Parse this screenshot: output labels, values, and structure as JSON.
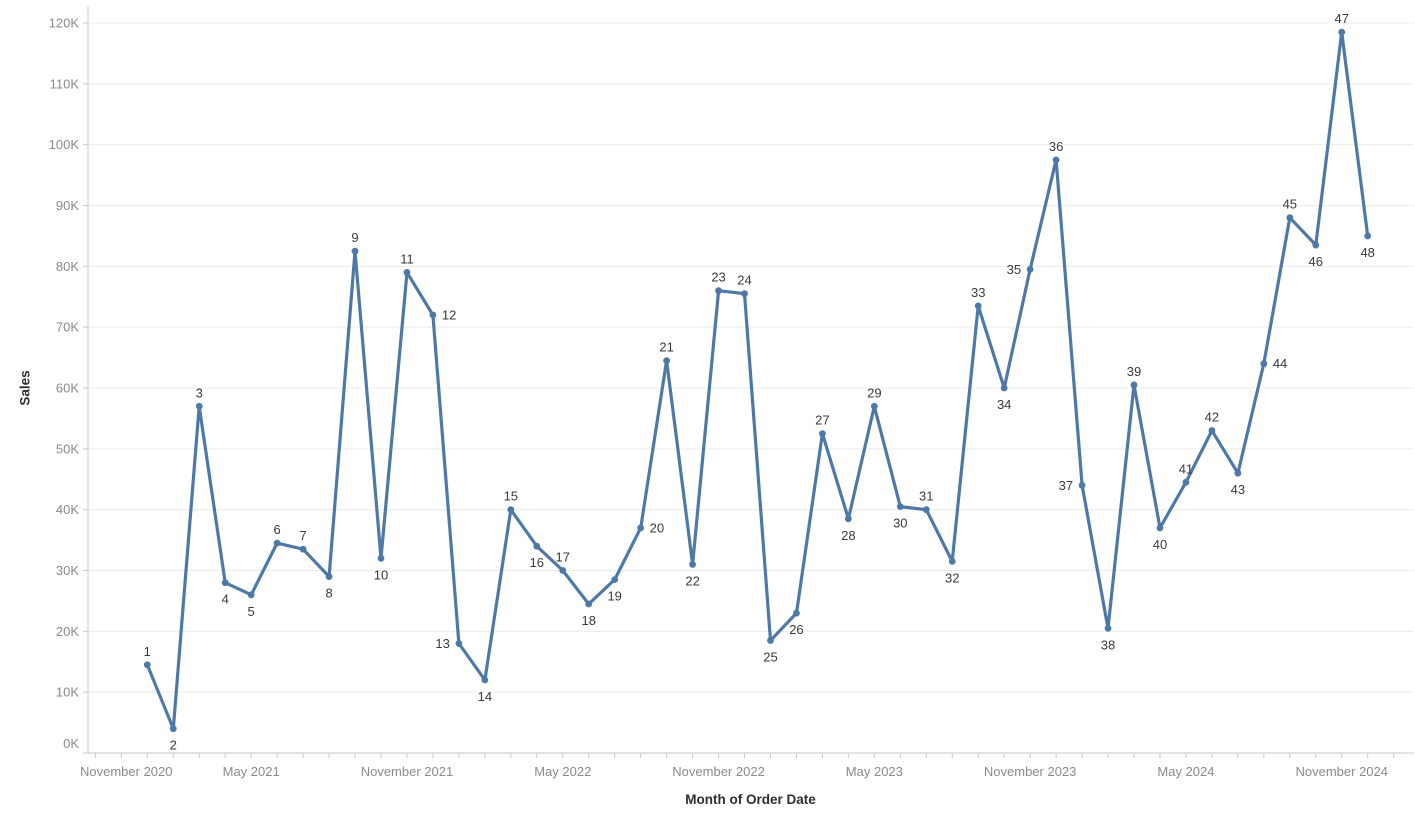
{
  "colors": {
    "line": "#4e79a7",
    "marker": "#4e79a7",
    "gridline": "#ececec",
    "axis_line": "#c9c9c9",
    "tick": "#c9c9c9",
    "tick_label": "#8a8a8a",
    "axis_title": "#2e2e2e",
    "data_label": "#3a3a3a",
    "background": "#ffffff"
  },
  "chart_data": {
    "type": "line",
    "title": "",
    "xlabel": "Month of Order Date",
    "ylabel": "Sales",
    "ylim": [
      0,
      120000
    ],
    "y_unit": "K",
    "grid": "horizontal",
    "legend": "none",
    "y_tick_labels": [
      "0K",
      "10K",
      "20K",
      "30K",
      "40K",
      "50K",
      "60K",
      "70K",
      "80K",
      "90K",
      "100K",
      "110K",
      "120K"
    ],
    "x_axis_tick_labels": [
      "November 2020",
      "May 2021",
      "November 2021",
      "May 2022",
      "November 2022",
      "May 2023",
      "November 2023",
      "May 2024",
      "November 2024"
    ],
    "series": [
      {
        "name": "Sales",
        "color": "#4e79a7",
        "points": [
          {
            "n": 1,
            "month": "January 2021",
            "sales_k": 14.5,
            "label_side": "above"
          },
          {
            "n": 2,
            "month": "February 2021",
            "sales_k": 4,
            "label_side": "below"
          },
          {
            "n": 3,
            "month": "March 2021",
            "sales_k": 57,
            "label_side": "above"
          },
          {
            "n": 4,
            "month": "April 2021",
            "sales_k": 28,
            "label_side": "below"
          },
          {
            "n": 5,
            "month": "May 2021",
            "sales_k": 26,
            "label_side": "below"
          },
          {
            "n": 6,
            "month": "June 2021",
            "sales_k": 34.5,
            "label_side": "above"
          },
          {
            "n": 7,
            "month": "July 2021",
            "sales_k": 33.5,
            "label_side": "above"
          },
          {
            "n": 8,
            "month": "August 2021",
            "sales_k": 29,
            "label_side": "below"
          },
          {
            "n": 9,
            "month": "September 2021",
            "sales_k": 82.5,
            "label_side": "above"
          },
          {
            "n": 10,
            "month": "October 2021",
            "sales_k": 32,
            "label_side": "below"
          },
          {
            "n": 11,
            "month": "November 2021",
            "sales_k": 79,
            "label_side": "above"
          },
          {
            "n": 12,
            "month": "December 2021",
            "sales_k": 72,
            "label_side": "right"
          },
          {
            "n": 13,
            "month": "January 2022",
            "sales_k": 18,
            "label_side": "left"
          },
          {
            "n": 14,
            "month": "February 2022",
            "sales_k": 12,
            "label_side": "below"
          },
          {
            "n": 15,
            "month": "March 2022",
            "sales_k": 40,
            "label_side": "above"
          },
          {
            "n": 16,
            "month": "April 2022",
            "sales_k": 34,
            "label_side": "below"
          },
          {
            "n": 17,
            "month": "May 2022",
            "sales_k": 30,
            "label_side": "above"
          },
          {
            "n": 18,
            "month": "June 2022",
            "sales_k": 24.5,
            "label_side": "below"
          },
          {
            "n": 19,
            "month": "July 2022",
            "sales_k": 28.5,
            "label_side": "below"
          },
          {
            "n": 20,
            "month": "August 2022",
            "sales_k": 37,
            "label_side": "right"
          },
          {
            "n": 21,
            "month": "September 2022",
            "sales_k": 64.5,
            "label_side": "above"
          },
          {
            "n": 22,
            "month": "October 2022",
            "sales_k": 31,
            "label_side": "below"
          },
          {
            "n": 23,
            "month": "November 2022",
            "sales_k": 76,
            "label_side": "above"
          },
          {
            "n": 24,
            "month": "December 2022",
            "sales_k": 75.5,
            "label_side": "above"
          },
          {
            "n": 25,
            "month": "January 2023",
            "sales_k": 18.5,
            "label_side": "below"
          },
          {
            "n": 26,
            "month": "February 2023",
            "sales_k": 23,
            "label_side": "below"
          },
          {
            "n": 27,
            "month": "March 2023",
            "sales_k": 52.5,
            "label_side": "above"
          },
          {
            "n": 28,
            "month": "April 2023",
            "sales_k": 38.5,
            "label_side": "below"
          },
          {
            "n": 29,
            "month": "May 2023",
            "sales_k": 57,
            "label_side": "above"
          },
          {
            "n": 30,
            "month": "June 2023",
            "sales_k": 40.5,
            "label_side": "below"
          },
          {
            "n": 31,
            "month": "July 2023",
            "sales_k": 40,
            "label_side": "above"
          },
          {
            "n": 32,
            "month": "August 2023",
            "sales_k": 31.5,
            "label_side": "below"
          },
          {
            "n": 33,
            "month": "September 2023",
            "sales_k": 73.5,
            "label_side": "above"
          },
          {
            "n": 34,
            "month": "October 2023",
            "sales_k": 60,
            "label_side": "below"
          },
          {
            "n": 35,
            "month": "November 2023",
            "sales_k": 79.5,
            "label_side": "left"
          },
          {
            "n": 36,
            "month": "December 2023",
            "sales_k": 97.5,
            "label_side": "above"
          },
          {
            "n": 37,
            "month": "January 2024",
            "sales_k": 44,
            "label_side": "left"
          },
          {
            "n": 38,
            "month": "February 2024",
            "sales_k": 20.5,
            "label_side": "below"
          },
          {
            "n": 39,
            "month": "March 2024",
            "sales_k": 60.5,
            "label_side": "above"
          },
          {
            "n": 40,
            "month": "April 2024",
            "sales_k": 37,
            "label_side": "below"
          },
          {
            "n": 41,
            "month": "May 2024",
            "sales_k": 44.5,
            "label_side": "above"
          },
          {
            "n": 42,
            "month": "June 2024",
            "sales_k": 53,
            "label_side": "above"
          },
          {
            "n": 43,
            "month": "July 2024",
            "sales_k": 46,
            "label_side": "below"
          },
          {
            "n": 44,
            "month": "August 2024",
            "sales_k": 64,
            "label_side": "right"
          },
          {
            "n": 45,
            "month": "September 2024",
            "sales_k": 88,
            "label_side": "above"
          },
          {
            "n": 46,
            "month": "October 2024",
            "sales_k": 83.5,
            "label_side": "below"
          },
          {
            "n": 47,
            "month": "November 2024",
            "sales_k": 118.5,
            "label_side": "above"
          },
          {
            "n": 48,
            "month": "December 2024",
            "sales_k": 85,
            "label_side": "below"
          }
        ]
      }
    ]
  }
}
